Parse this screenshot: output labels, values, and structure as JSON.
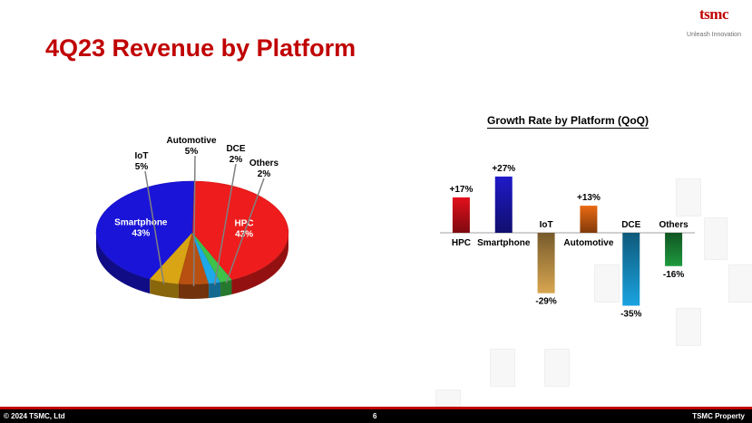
{
  "slide": {
    "title": "4Q23 Revenue by Platform",
    "logo": "tsmc",
    "logo_tagline": "Unleash Innovation",
    "accent_color": "#c00000"
  },
  "footer": {
    "copyright": "© 2024 TSMC, Ltd",
    "page_number": "6",
    "property": "TSMC Property"
  },
  "chart_data": [
    {
      "type": "pie",
      "title": "",
      "slices": [
        {
          "name": "HPC",
          "value": 43,
          "label": "43%",
          "color": "#ee1c1c"
        },
        {
          "name": "Smartphone",
          "value": 43,
          "label": "43%",
          "color": "#1a14d8"
        },
        {
          "name": "IoT",
          "value": 5,
          "label": "5%",
          "color": "#d9a514"
        },
        {
          "name": "Automotive",
          "value": 5,
          "label": "5%",
          "color": "#b85012"
        },
        {
          "name": "DCE",
          "value": 2,
          "label": "2%",
          "color": "#1ea9e8"
        },
        {
          "name": "Others",
          "value": 2,
          "label": "2%",
          "color": "#3ec24a"
        }
      ]
    },
    {
      "type": "bar",
      "title": "Growth Rate by Platform (QoQ)",
      "categories": [
        "HPC",
        "Smartphone",
        "IoT",
        "Automotive",
        "DCE",
        "Others"
      ],
      "values": [
        17,
        27,
        -29,
        13,
        -35,
        -16
      ],
      "value_labels": [
        "+17%",
        "+27%",
        "-29%",
        "+13%",
        "-35%",
        "-16%"
      ],
      "colors": [
        "#e3101c",
        "#1f1ac8",
        "#d8a650",
        "#ea6a12",
        "#1aa3e0",
        "#1e9a3e"
      ],
      "ylim": [
        -35,
        27
      ],
      "grid": false,
      "legend": "none"
    }
  ]
}
